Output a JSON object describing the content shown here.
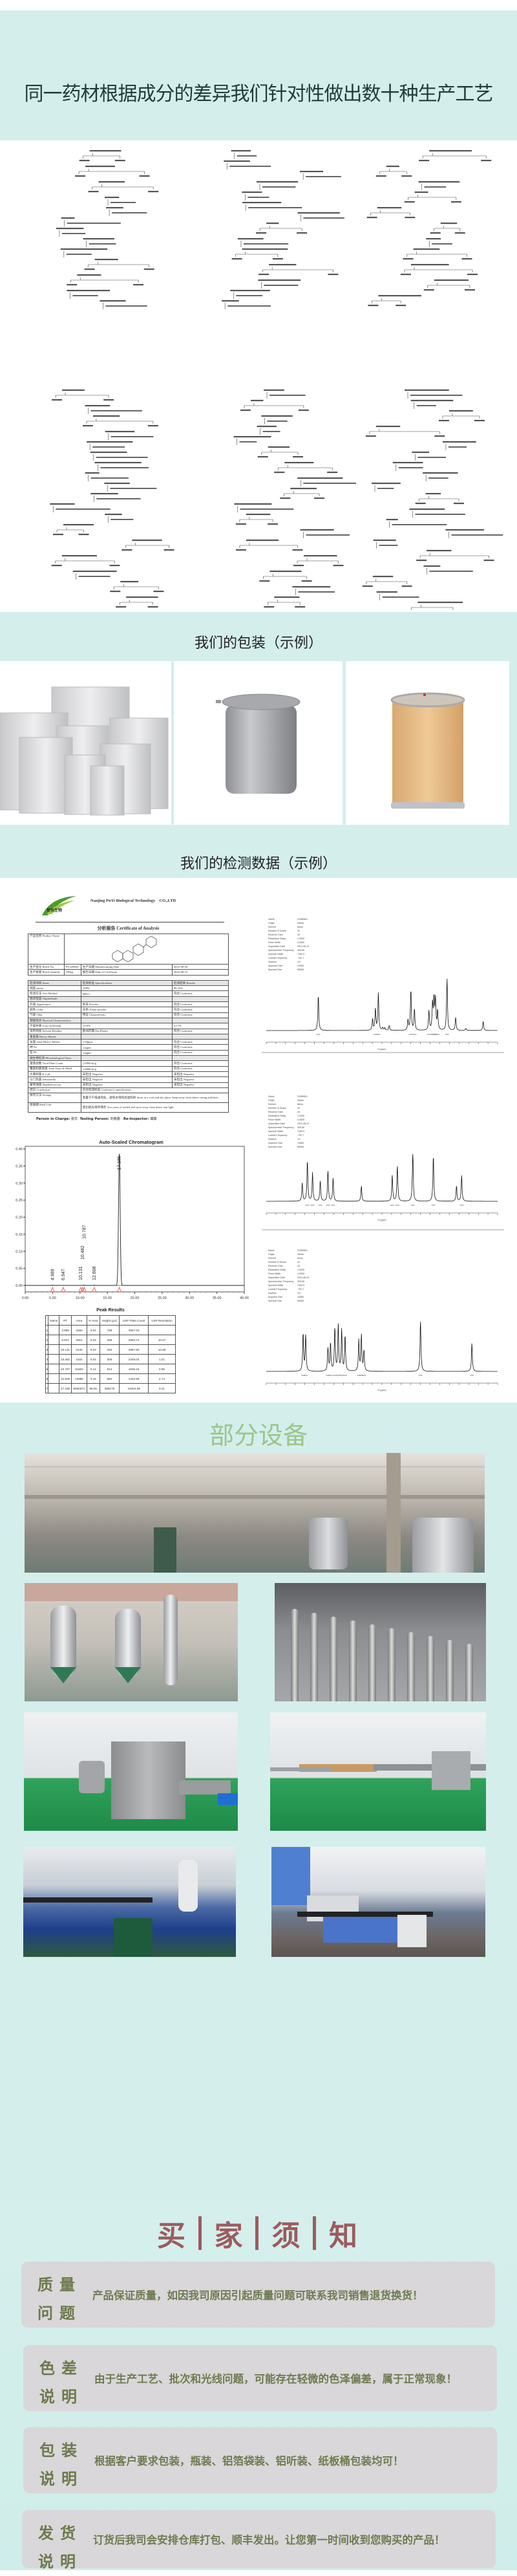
{
  "header": {
    "title": "同一药材根据成分的差异我们针对性做出数十种生产工艺"
  },
  "packaging": {
    "title": "我们的包装（示例）",
    "items": [
      "aluminum-foil-bags",
      "aluminum-can",
      "fiber-drum"
    ]
  },
  "testing": {
    "title": "我们的检测数据（示例）",
    "coa": {
      "company": "Nanjing PuYi Biological Technology    CO.,LTD",
      "logo_text": "普怡生物",
      "logo_sub": "PUYI BIOLOGY",
      "heading": "分析报告 Certificate of Analysis",
      "product_name_label": "产品名称 Product Name",
      "batch_no_label": "生产批号 Batch No.",
      "batch_no": "PY220804",
      "mfg_date_label": "生产日期  Manufacturing Date",
      "mfg_date": "2022-08-04",
      "batch_qty_label": "生产批量 Batch Quantity",
      "batch_qty": "100kg",
      "cert_date_label": "报告日期 Date of Certificate",
      "cert_date": "2022-08-15",
      "columns": [
        "检测项目 Items",
        "检测标准 Specifications",
        "检测结果 Results"
      ],
      "rows": [
        [
          "纯度 purity",
          "≥98%",
          "98.32%"
        ],
        [
          "检测方法 Test Method",
          "HPLC",
          "符合 Conforms"
        ],
        [
          "性状检查 Organoleptic",
          "",
          ""
        ],
        [
          "外观 Appearance",
          "粉末 Powder",
          "符合 Conforms"
        ],
        [
          "颜色 Color",
          "白色 White powder",
          "符合 Conforms"
        ],
        [
          "气味 Odor",
          "特征 Characteristic",
          "符合 Conforms"
        ],
        [
          "物理性状 Physical Characteristics",
          "",
          ""
        ],
        [
          "干燥失重 Loss on Drying",
          "≤5.0%",
          "4.17%"
        ],
        [
          "溶剂残留 Solvent Residue",
          "欧洲药典 Eur.Pharm",
          "符合 Conforms"
        ],
        [
          "重金属 Heavy Metals",
          "",
          ""
        ],
        [
          "总量 Total Heavy Metals",
          "≤10ppm",
          "符合 Conforms"
        ],
        [
          "砷 As",
          "≤2ppm",
          "符合 Conforms"
        ],
        [
          "铅 Pb",
          "≤2ppm",
          "符合 Conforms"
        ],
        [
          "微生物检测 Microbiological Tests",
          "",
          ""
        ],
        [
          "菌落总数 Total Plate Count",
          "≤1000cfu/g",
          "符合 Conforms"
        ],
        [
          "霉菌和酵母菌 Total Yeast & Mold",
          "≤1000cfu/g",
          "符合 Conforms"
        ],
        [
          "大肠杆菌 E.Coli.",
          "未检出 Negative",
          "未检出 Negative"
        ],
        [
          "沙门氏菌 Salmonella",
          "未检出 Negative",
          "未检出 Negative"
        ],
        [
          "葡萄球菌 Staphylococcus",
          "未检出 Negative",
          "未检出 Negative"
        ]
      ],
      "conclusion_label": "结论 Conclusion",
      "conclusion": "符合检测标准 Conform to specification.",
      "storage_label": "保存方法 Storage",
      "storage": "放置于干燥通风处，避免太阳和高温照射 Store in a cool and dry place, keep away from direct strong and heat.",
      "shelf_label": "保质期 Shelf Life",
      "shelf": "密封避光保存两年 Two years if sealed and store away from direct sun light.",
      "person_in_charge_label": "Person in Charge:",
      "person_in_charge": "张华",
      "testing_person_label": "Testing Person:",
      "testing_person": "刘晓勇",
      "reinspector_label": "Re-Inspector:",
      "reinspector": "谭康"
    },
    "peak_results": {
      "title": "Peak Results",
      "columns": [
        "",
        "Name",
        "RT",
        "Area",
        "% Area",
        "Height (µV)",
        "USP Plate Count",
        "USP Resolution"
      ],
      "rows": [
        [
          "1",
          "",
          "4.989",
          "3456",
          "0.04",
          "799",
          "3657.03",
          ""
        ],
        [
          "2",
          "",
          "6.947",
          "2061",
          "0.03",
          "268",
          "2803.72",
          "10.07"
        ],
        [
          "3",
          "",
          "10.131",
          "2248",
          "0.03",
          "250",
          "2867.80",
          "10.69"
        ],
        [
          "4",
          "",
          "10.482",
          "3104",
          "0.04",
          "306",
          "2349.04",
          "1.01"
        ],
        [
          "5",
          "",
          "10.787",
          "11583",
          "0.14",
          "912",
          "1536.24",
          "0.85"
        ],
        [
          "6",
          "",
          "12.608",
          "12896",
          "0.16",
          "884",
          "1432.58",
          "4.74"
        ],
        [
          "7",
          "",
          "17.186",
          "8060071",
          "99.56",
          "386179",
          "16404.99",
          "9.41"
        ]
      ]
    },
    "nmr_params": [
      [
        "Name",
        "21080801"
      ],
      [
        "Origin",
        "Varian"
      ],
      [
        "Solvent",
        "dmso"
      ],
      [
        "Number of Scans",
        "32"
      ],
      [
        "Receiver Gain",
        "44"
      ],
      [
        "Relaxation Delay",
        "1.0000"
      ],
      [
        "Pulse Width",
        "4.0500"
      ],
      [
        "Acquisition Date",
        "2021-08-13"
      ],
      [
        "Spectrometer Frequency",
        "399.89"
      ],
      [
        "Spectral Width",
        "7183.9"
      ],
      [
        "Lowest Frequency",
        "-792.7"
      ],
      [
        "Nucleus",
        "1H"
      ],
      [
        "Acquired Size",
        "14384"
      ],
      [
        "Spectral Size",
        "65536"
      ]
    ],
    "nmr_axis_label": "f1 (ppm)"
  },
  "chart_data": {
    "type": "line",
    "title": "Auto-Scaled Chromatogram",
    "xlim": [
      0,
      40
    ],
    "ylim": [
      -0.02,
      0.41
    ],
    "xticks": [
      "0.00",
      "5.00",
      "10.00",
      "15.00",
      "20.00",
      "25.00",
      "30.00",
      "35.00",
      "40.00"
    ],
    "yticks": [
      "0.00",
      "0.05",
      "0.10",
      "0.15",
      "0.20",
      "0.25",
      "0.30",
      "0.35",
      "0.40"
    ],
    "peaks": [
      {
        "rt": 4.989,
        "label": "4.989",
        "height": 0.0008
      },
      {
        "rt": 6.947,
        "label": "6.947",
        "height": 0.0003
      },
      {
        "rt": 10.131,
        "label": "10.131",
        "height": 0.0003
      },
      {
        "rt": 10.482,
        "label": "10.482",
        "height": 0.0003
      },
      {
        "rt": 10.787,
        "label": "10.787",
        "height": 0.0009
      },
      {
        "rt": 12.608,
        "label": "12.608",
        "height": 0.0009
      },
      {
        "rt": 17.186,
        "label": "17.186",
        "height": 0.386
      }
    ],
    "grid": false,
    "marker_color": "#e03030"
  },
  "equipment": {
    "title": "部分设备"
  },
  "notice": {
    "title_chars": [
      "买",
      "家",
      "须",
      "知"
    ],
    "items": [
      {
        "label1": "质量",
        "label2": "问题",
        "text": "产品保证质量，如因我司原因引起质量问题可联系我司销售退货换货！"
      },
      {
        "label1": "色差",
        "label2": "说明",
        "text": "由于生产工艺、批次和光线问题，可能存在轻微的色泽偏差，属于正常现象！"
      },
      {
        "label1": "包装",
        "label2": "说明",
        "text": "根据客户要求包装，瓶装、铝箔袋装、铝听装、纸板桶包装均可！"
      },
      {
        "label1": "发货",
        "label2": "说明",
        "text": "订货后我司会安排仓库打包、顺丰发出。让您第一时间收到您购买的产品！"
      }
    ]
  },
  "colors": {
    "teal_band": "#d4eeec",
    "header_text": "#1f3d36",
    "equipment_title": "#9dc58a",
    "notice_title": "#9c5b5e",
    "notice_card": "#d9d7d9",
    "notice_text": "#6f7b50"
  }
}
